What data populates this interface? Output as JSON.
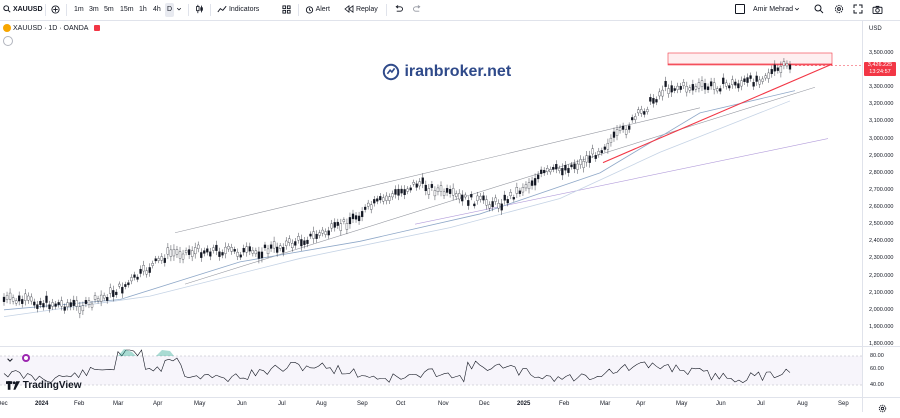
{
  "toolbar": {
    "symbol": "XAUUSD",
    "timeframes": [
      "1m",
      "3m",
      "5m",
      "15m",
      "1h",
      "4h",
      "D"
    ],
    "active_timeframe": "D",
    "indicators_label": "Indicators",
    "alert_label": "Alert",
    "replay_label": "Replay",
    "user_name": "Amir Mehrad"
  },
  "legend": {
    "title": "XAUUSD · 1D · OANDA"
  },
  "watermark": "iranbroker.net",
  "brand": "TradingView",
  "price_axis": {
    "currency": "USD",
    "labels": [
      "3,500.000",
      "3,400.000",
      "3,300.000",
      "3,200.000",
      "3,100.000",
      "3,000.000",
      "2,900.000",
      "2,800.000",
      "2,700.000",
      "2,600.000",
      "2,500.000",
      "2,400.000",
      "2,300.000",
      "2,200.000",
      "2,100.000",
      "2,000.000",
      "1,900.000",
      "1,800.000"
    ],
    "last_price": "3,426.225",
    "countdown": "13:24:57"
  },
  "rsi_axis": {
    "labels": [
      "80.00",
      "60.00",
      "40.00"
    ]
  },
  "time_axis": {
    "labels": [
      "Dec",
      "2024",
      "Feb",
      "Mar",
      "Apr",
      "May",
      "Jun",
      "Jul",
      "Aug",
      "Sep",
      "Oct",
      "Nov",
      "Dec",
      "2025",
      "Feb",
      "Mar",
      "Apr",
      "May",
      "Jun",
      "Jul",
      "Aug",
      "Sep"
    ]
  },
  "colors": {
    "up": "#089981",
    "down": "#131722",
    "resistance": "#f23645",
    "ma": "#8fa8c8",
    "channel": "#9598a1",
    "rsi": "#131722",
    "rsi_overbought": "#089981"
  },
  "chart_data": {
    "type": "line",
    "series": [
      {
        "name": "XAUUSD",
        "x": [
          "2023-12",
          "2024-01",
          "2024-02",
          "2024-03",
          "2024-04",
          "2024-05",
          "2024-06",
          "2024-07",
          "2024-08",
          "2024-09",
          "2024-10",
          "2024-11",
          "2024-12",
          "2025-01",
          "2025-02",
          "2025-03",
          "2025-04",
          "2025-05",
          "2025-06",
          "2025-07"
        ],
        "values": [
          2060,
          2040,
          2020,
          2150,
          2330,
          2350,
          2330,
          2390,
          2470,
          2620,
          2740,
          2650,
          2620,
          2790,
          2860,
          3050,
          3300,
          3300,
          3330,
          3426
        ]
      }
    ],
    "ylim": [
      1800,
      3560
    ]
  }
}
